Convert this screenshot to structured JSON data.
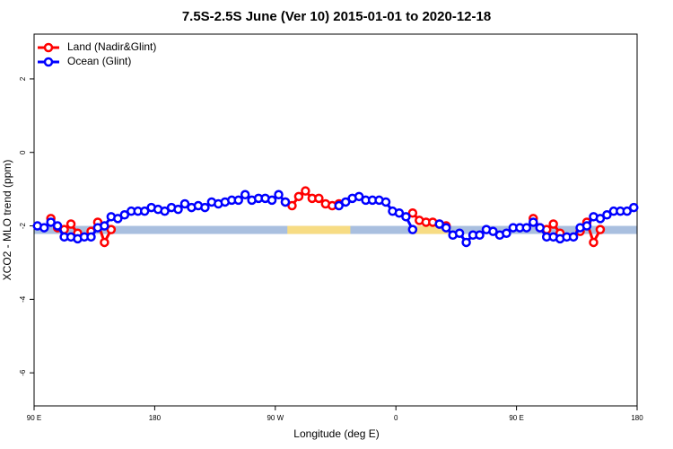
{
  "chart_data": {
    "type": "line",
    "title": "7.5S-2.5S June (Ver 10)   2015-01-01 to 2020-12-18",
    "x_label": "Longitude (deg E)",
    "y_label": "XCO2 - MLO trend (ppm)",
    "xlim": [
      90,
      540
    ],
    "xticks": [
      {
        "value": 90,
        "label": "90 E"
      },
      180,
      {
        "value": 270,
        "label": "90 W"
      },
      {
        "value": 360,
        "label": "0"
      },
      {
        "value": 450,
        "label": "90 E"
      },
      {
        "value": 540,
        "label": "180"
      }
    ],
    "ylim": [
      -6.9,
      3.22
    ],
    "yticks": [
      -6,
      -4,
      -2,
      0,
      2
    ],
    "legend": "top-left",
    "band": {
      "ylim": [
        -2.22,
        -2.0
      ],
      "color": "#a9bfdf",
      "land_color": "#f7dc84",
      "land_spans": [
        [
          279,
          326
        ],
        [
          373,
          399
        ]
      ]
    },
    "x": [
      92.5,
      97.5,
      102.5,
      107.5,
      112.5,
      117.5,
      122.5,
      127.5,
      132.5,
      137.5,
      142.5,
      147.5,
      152.5,
      157.5,
      162.5,
      167.5,
      172.5,
      177.5,
      182.5,
      187.5,
      192.5,
      197.5,
      202.5,
      207.5,
      212.5,
      217.5,
      222.5,
      227.5,
      232.5,
      237.5,
      242.5,
      247.5,
      252.5,
      257.5,
      262.5,
      267.5,
      272.5,
      277.5,
      282.5,
      287.5,
      292.5,
      297.5,
      302.5,
      307.5,
      312.5,
      317.5,
      322.5,
      327.5,
      332.5,
      337.5,
      342.5,
      347.5,
      352.5,
      357.5,
      362.5,
      367.5,
      372.5,
      377.5,
      382.5,
      387.5,
      392.5,
      397.5,
      402.5,
      407.5,
      412.5,
      417.5,
      422.5,
      427.5,
      432.5,
      437.5,
      442.5,
      447.5,
      452.5,
      457.5,
      462.5,
      467.5,
      472.5,
      477.5,
      482.5,
      487.5,
      492.5,
      497.5,
      502.5,
      507.5,
      512.5,
      517.5,
      522.5,
      527.5,
      532.5,
      537.5
    ],
    "series": [
      {
        "name": "Land (Nadir&Glint)",
        "color": "#ff0000",
        "values": [
          null,
          null,
          -1.8,
          -2.05,
          -2.1,
          -1.95,
          -2.2,
          null,
          -2.15,
          -1.9,
          -2.45,
          -2.1,
          null,
          null,
          null,
          null,
          null,
          null,
          null,
          null,
          null,
          null,
          null,
          null,
          null,
          null,
          null,
          null,
          null,
          null,
          null,
          null,
          null,
          null,
          null,
          null,
          null,
          -1.35,
          -1.45,
          -1.2,
          -1.05,
          -1.25,
          -1.25,
          -1.4,
          -1.45,
          -1.4,
          null,
          null,
          null,
          null,
          null,
          null,
          null,
          null,
          null,
          null,
          -1.65,
          -1.85,
          -1.9,
          -1.9,
          -1.95,
          -2.0,
          null,
          null,
          null,
          null,
          null,
          null,
          null,
          null,
          null,
          null,
          null,
          null,
          -1.8,
          -2.05,
          -2.1,
          -1.95,
          -2.2,
          null,
          null,
          -2.15,
          -1.9,
          -2.45,
          -2.1,
          null,
          null,
          null,
          null,
          null
        ]
      },
      {
        "name": "Ocean (Glint)",
        "color": "#0000ff",
        "values": [
          -2.0,
          -2.05,
          -1.9,
          -2.0,
          -2.3,
          -2.3,
          -2.35,
          -2.3,
          -2.3,
          -2.05,
          -2.0,
          -1.75,
          -1.8,
          -1.7,
          -1.6,
          -1.6,
          -1.6,
          -1.5,
          -1.55,
          -1.6,
          -1.5,
          -1.55,
          -1.4,
          -1.5,
          -1.45,
          -1.5,
          -1.35,
          -1.4,
          -1.35,
          -1.3,
          -1.3,
          -1.15,
          -1.3,
          -1.25,
          -1.25,
          -1.3,
          -1.15,
          -1.35,
          null,
          null,
          null,
          null,
          null,
          null,
          null,
          -1.45,
          -1.35,
          -1.25,
          -1.2,
          -1.3,
          -1.3,
          -1.3,
          -1.35,
          -1.6,
          -1.65,
          -1.75,
          -2.1,
          null,
          null,
          null,
          -1.95,
          -2.05,
          -2.25,
          -2.2,
          -2.45,
          -2.25,
          -2.25,
          -2.1,
          -2.15,
          -2.25,
          -2.2,
          -2.05,
          -2.05,
          -2.05,
          -1.9,
          -2.05,
          -2.3,
          -2.3,
          -2.35,
          -2.3,
          -2.3,
          -2.05,
          -2.0,
          -1.75,
          -1.8,
          -1.7,
          -1.6,
          -1.6,
          -1.6,
          -1.5
        ]
      }
    ]
  }
}
